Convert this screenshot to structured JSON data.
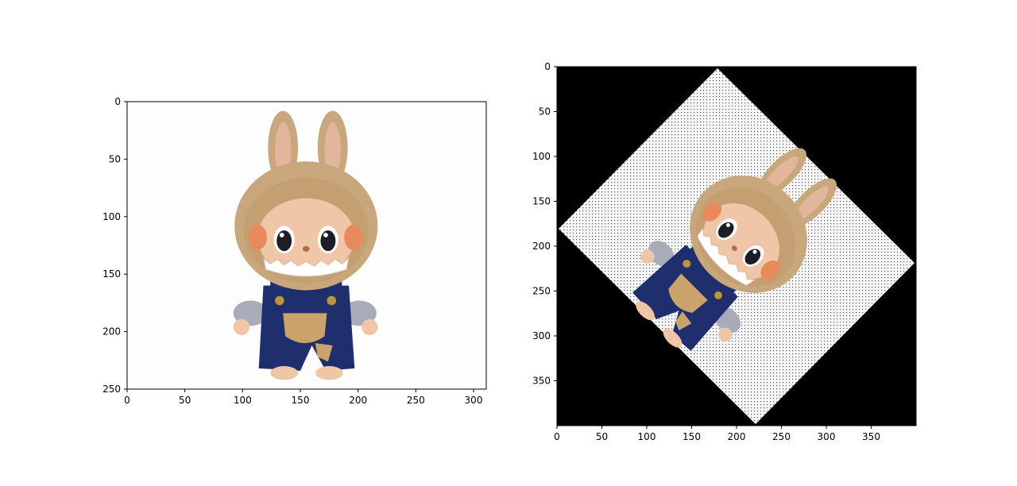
{
  "chart_data": [
    {
      "type": "image",
      "subject": "plush toy",
      "xlim": [
        0,
        311
      ],
      "ylim": [
        250,
        0
      ],
      "xticks": [
        0,
        50,
        100,
        150,
        200,
        250,
        300
      ],
      "yticks": [
        0,
        50,
        100,
        150,
        200,
        250
      ],
      "grid": false
    },
    {
      "type": "image",
      "subject": "plush toy rotated",
      "rotation_deg": 45,
      "background": "#000000",
      "xlim": [
        0,
        400
      ],
      "ylim": [
        400,
        0
      ],
      "xticks": [
        0,
        50,
        100,
        150,
        200,
        250,
        300,
        350
      ],
      "yticks": [
        0,
        50,
        100,
        150,
        200,
        250,
        300,
        350
      ],
      "grid": false
    }
  ],
  "colors": {
    "fur": "#c9a77c",
    "fur_dark": "#a8845a",
    "skin": "#f0c6a8",
    "overalls": "#1f2f6e",
    "shirt": "#a7acb8",
    "pocket": "#c9a26c",
    "eye": "#1d1d26",
    "frame": "#000000"
  }
}
